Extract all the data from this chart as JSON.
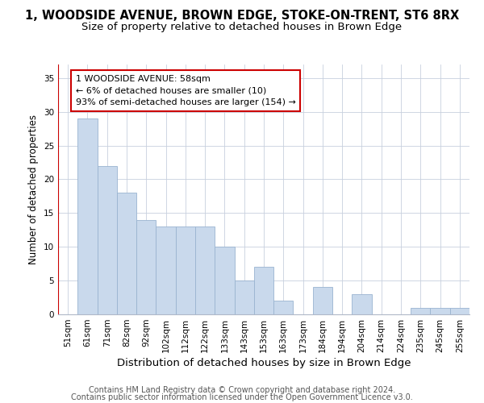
{
  "title": "1, WOODSIDE AVENUE, BROWN EDGE, STOKE-ON-TRENT, ST6 8RX",
  "subtitle": "Size of property relative to detached houses in Brown Edge",
  "xlabel": "Distribution of detached houses by size in Brown Edge",
  "ylabel": "Number of detached properties",
  "categories": [
    "51sqm",
    "61sqm",
    "71sqm",
    "82sqm",
    "92sqm",
    "102sqm",
    "112sqm",
    "122sqm",
    "133sqm",
    "143sqm",
    "153sqm",
    "163sqm",
    "173sqm",
    "184sqm",
    "194sqm",
    "204sqm",
    "214sqm",
    "224sqm",
    "235sqm",
    "245sqm",
    "255sqm"
  ],
  "values": [
    0,
    29,
    22,
    18,
    14,
    13,
    13,
    13,
    10,
    5,
    7,
    2,
    0,
    4,
    0,
    3,
    0,
    0,
    1,
    1,
    1
  ],
  "bar_color": "#c9d9ec",
  "bar_edgecolor": "#9ab4d0",
  "highlight_line_color": "#cc0000",
  "annotation_box_edgecolor": "#cc0000",
  "annotation_line1": "1 WOODSIDE AVENUE: 58sqm",
  "annotation_line2": "← 6% of detached houses are smaller (10)",
  "annotation_line3": "93% of semi-detached houses are larger (154) →",
  "ylim": [
    0,
    37
  ],
  "yticks": [
    0,
    5,
    10,
    15,
    20,
    25,
    30,
    35
  ],
  "footer_line1": "Contains HM Land Registry data © Crown copyright and database right 2024.",
  "footer_line2": "Contains public sector information licensed under the Open Government Licence v3.0.",
  "title_fontsize": 10.5,
  "subtitle_fontsize": 9.5,
  "xlabel_fontsize": 9.5,
  "ylabel_fontsize": 8.5,
  "tick_fontsize": 7.5,
  "annotation_fontsize": 8,
  "footer_fontsize": 7,
  "background_color": "#ffffff",
  "grid_color": "#c8d0de"
}
